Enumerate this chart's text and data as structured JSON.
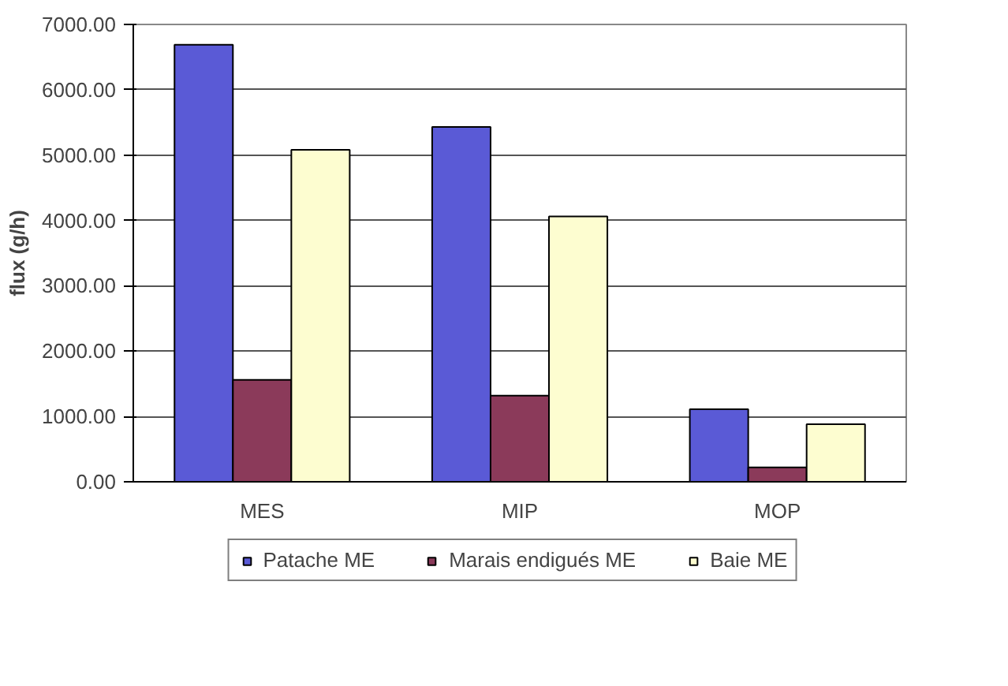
{
  "chart_data": {
    "type": "bar",
    "ylabel": "flux (g/h)",
    "categories": [
      "MES",
      "MIP",
      "MOP"
    ],
    "series": [
      {
        "name": "Patache ME",
        "color": "#5a5ad6",
        "values": [
          6690,
          5430,
          1110
        ]
      },
      {
        "name": "Marais endigués ME",
        "color": "#8b3a5a",
        "values": [
          1560,
          1320,
          220
        ]
      },
      {
        "name": "Baie ME",
        "color": "#fdfdd0",
        "values": [
          5080,
          4060,
          880
        ]
      }
    ],
    "ylim": [
      0,
      7000
    ],
    "yticks": [
      {
        "value": 0,
        "label": "0.00"
      },
      {
        "value": 1000,
        "label": "1000.00"
      },
      {
        "value": 2000,
        "label": "2000.00"
      },
      {
        "value": 3000,
        "label": "3000.00"
      },
      {
        "value": 4000,
        "label": "4000.00"
      },
      {
        "value": 5000,
        "label": "5000.00"
      },
      {
        "value": 6000,
        "label": "6000.00"
      },
      {
        "value": 7000,
        "label": "7000.00"
      }
    ],
    "grid": "y",
    "legend": "bottom"
  }
}
